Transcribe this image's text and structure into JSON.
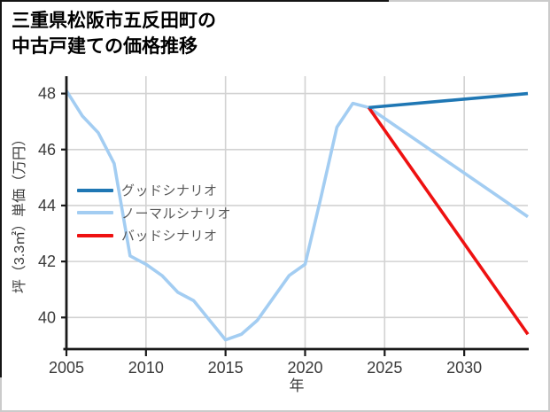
{
  "header": {
    "title_lines": [
      "三重県松阪市五反田町の",
      "中古戸建ての価格推移"
    ]
  },
  "legend": {
    "items": [
      {
        "label": "グッドシナリオ",
        "color": "#1f77b4"
      },
      {
        "label": "ノーマルシナリオ",
        "color": "#a3cdf2"
      },
      {
        "label": "バッドシナリオ",
        "color": "#ee1111"
      }
    ]
  },
  "colors": {
    "grid": "#d2d2d2",
    "axis": "#1a1a1a",
    "tick_label": "#3a3a3a",
    "legend_text": "#585858",
    "border_gray": "#cbcbcb",
    "border_black": "#141414"
  },
  "chart_data": {
    "type": "line",
    "title": "三重県松阪市五反田町の中古戸建ての価格推移",
    "xlabel": "年",
    "ylabel": "坪（3.3㎡）単価（万円）",
    "grid": true,
    "legend_position": "upper-left-inside",
    "x_ticks": [
      2005,
      2010,
      2015,
      2020,
      2025,
      2030
    ],
    "y_ticks": [
      40,
      42,
      44,
      46,
      48
    ],
    "xlim": [
      2005,
      2034
    ],
    "ylim": [
      38.87,
      48.62
    ],
    "series": [
      {
        "name": "ノーマルシナリオ",
        "color": "#a3cdf2",
        "x": [
          2005,
          2006,
          2007,
          2008,
          2009,
          2010,
          2011,
          2012,
          2013,
          2014,
          2015,
          2016,
          2017,
          2018,
          2019,
          2020,
          2021,
          2022,
          2023,
          2024,
          2034
        ],
        "values": [
          48.1,
          47.2,
          46.6,
          45.5,
          42.2,
          41.9,
          41.5,
          40.9,
          40.6,
          39.9,
          39.2,
          39.4,
          39.9,
          40.7,
          41.5,
          41.9,
          44.3,
          46.8,
          47.65,
          47.5,
          43.6
        ]
      },
      {
        "name": "バッドシナリオ",
        "color": "#ee1111",
        "x": [
          2024,
          2034
        ],
        "values": [
          47.5,
          39.4
        ]
      },
      {
        "name": "グッドシナリオ",
        "color": "#1f77b4",
        "x": [
          2024,
          2034
        ],
        "values": [
          47.5,
          48.0
        ]
      }
    ]
  }
}
